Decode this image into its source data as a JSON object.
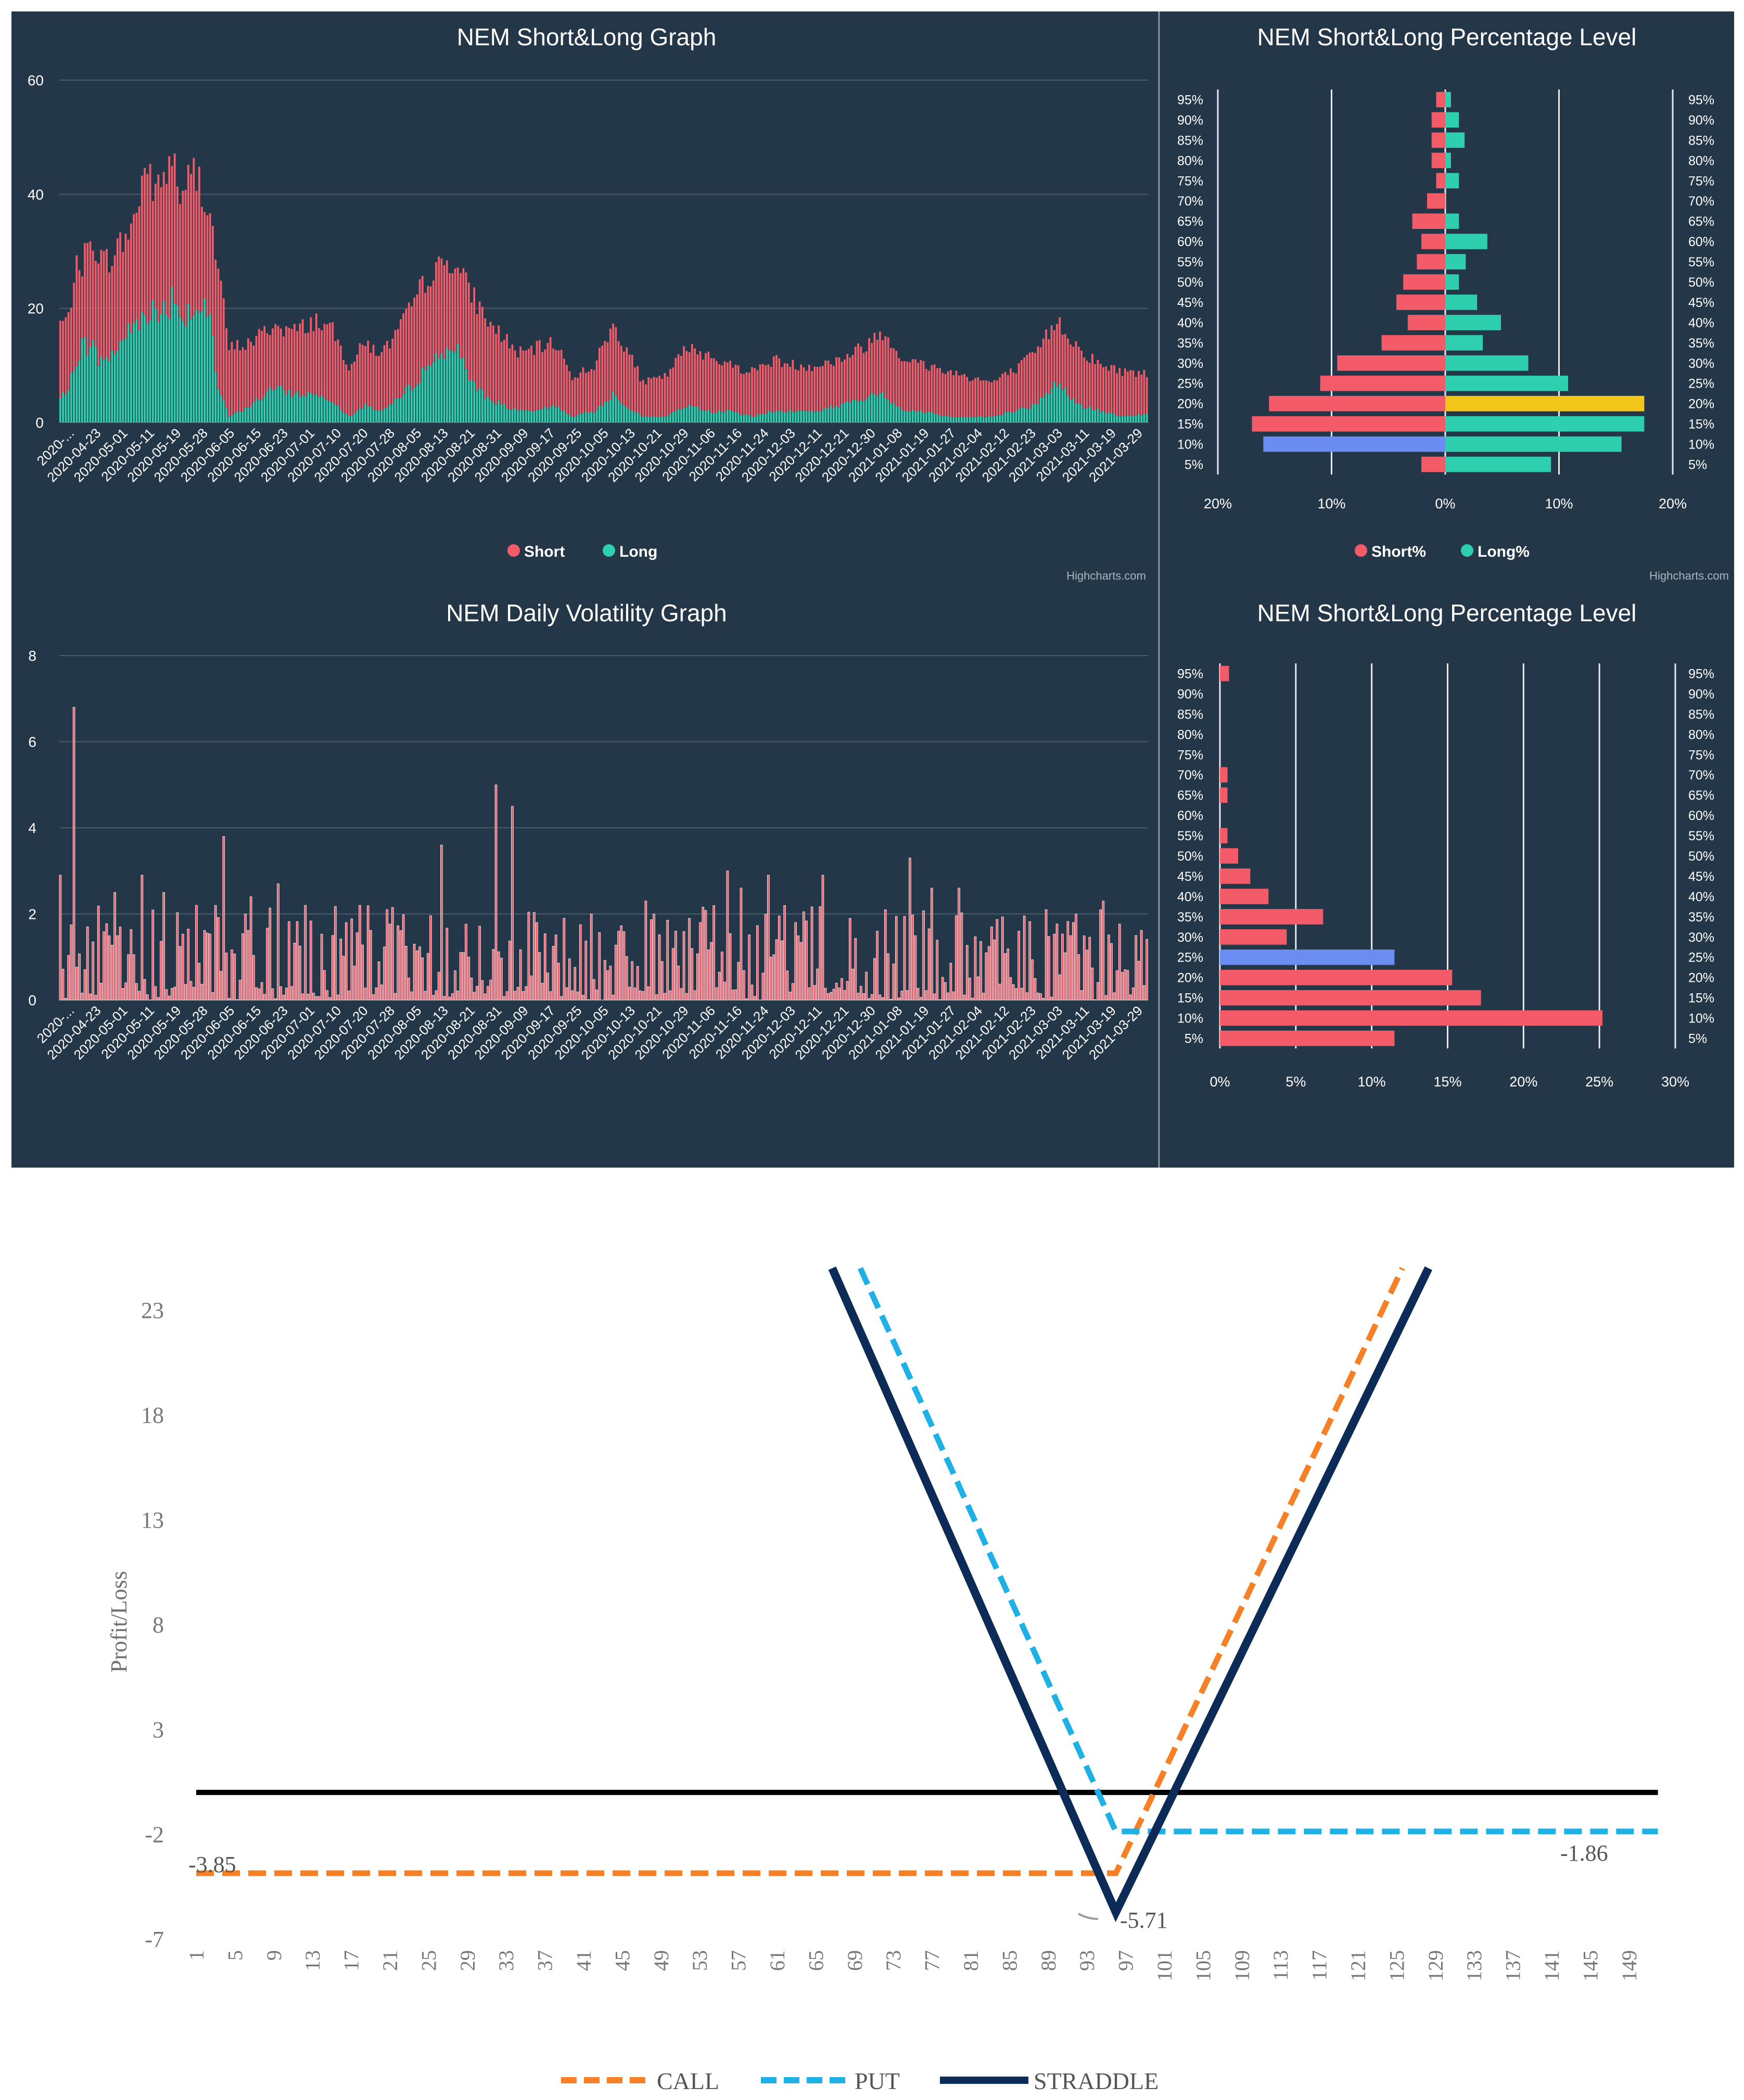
{
  "chart_data": [
    {
      "id": "nem-short-long",
      "type": "bar",
      "stacked": true,
      "title": "NEM Short&Long Graph",
      "credit": "Highcharts.com",
      "ylim": [
        0,
        60
      ],
      "yticks": [
        0,
        20,
        40,
        60
      ],
      "xtick_labels": [
        "2020-...",
        "2020-04-23",
        "2020-05-01",
        "2020-05-11",
        "2020-05-19",
        "2020-05-28",
        "2020-06-05",
        "2020-06-15",
        "2020-06-23",
        "2020-07-01",
        "2020-07-10",
        "2020-07-20",
        "2020-07-28",
        "2020-08-05",
        "2020-08-13",
        "2020-08-21",
        "2020-08-31",
        "2020-09-09",
        "2020-09-17",
        "2020-09-25",
        "2020-10-05",
        "2020-10-13",
        "2020-10-21",
        "2020-10-29",
        "2020-11-06",
        "2020-11-16",
        "2020-11-24",
        "2020-12-03",
        "2020-12-11",
        "2020-12-21",
        "2020-12-30",
        "2021-01-08",
        "2021-01-19",
        "2021-01-27",
        "2021-02-04",
        "2021-02-12",
        "2021-02-23",
        "2021-03-03",
        "2021-03-11",
        "2021-03-19",
        "2021-03-29"
      ],
      "total_profile": [
        [
          0,
          17.5
        ],
        [
          3,
          18
        ],
        [
          5,
          26
        ],
        [
          8,
          28
        ],
        [
          12,
          32
        ],
        [
          16,
          28
        ],
        [
          22,
          31
        ],
        [
          27,
          35
        ],
        [
          31,
          45
        ],
        [
          36,
          40
        ],
        [
          41,
          47
        ],
        [
          45,
          38
        ],
        [
          48,
          44
        ],
        [
          52,
          42
        ],
        [
          55,
          36
        ],
        [
          58,
          27
        ],
        [
          62,
          13
        ],
        [
          70,
          14
        ],
        [
          78,
          17
        ],
        [
          86,
          16
        ],
        [
          94,
          18
        ],
        [
          100,
          16
        ],
        [
          106,
          10
        ],
        [
          112,
          14
        ],
        [
          118,
          12
        ],
        [
          124,
          16
        ],
        [
          130,
          21
        ],
        [
          135,
          26
        ],
        [
          140,
          27
        ],
        [
          144,
          29
        ],
        [
          148,
          25
        ],
        [
          153,
          21
        ],
        [
          158,
          17
        ],
        [
          163,
          15
        ],
        [
          168,
          12
        ],
        [
          175,
          13
        ],
        [
          182,
          14
        ],
        [
          188,
          8
        ],
        [
          196,
          10
        ],
        [
          203,
          17
        ],
        [
          208,
          13
        ],
        [
          214,
          7
        ],
        [
          222,
          8
        ],
        [
          230,
          13
        ],
        [
          238,
          12
        ],
        [
          246,
          10
        ],
        [
          254,
          9
        ],
        [
          262,
          11
        ],
        [
          270,
          10
        ],
        [
          278,
          10
        ],
        [
          286,
          11
        ],
        [
          294,
          13
        ],
        [
          302,
          16
        ],
        [
          310,
          11
        ],
        [
          318,
          10
        ],
        [
          326,
          9
        ],
        [
          334,
          8
        ],
        [
          342,
          7
        ],
        [
          350,
          9
        ],
        [
          358,
          12
        ],
        [
          366,
          18
        ],
        [
          374,
          13
        ],
        [
          382,
          10
        ],
        [
          390,
          9
        ],
        [
          399,
          8.5
        ]
      ],
      "long_profile": [
        [
          0,
          4.5
        ],
        [
          3,
          5
        ],
        [
          5,
          10
        ],
        [
          8,
          14
        ],
        [
          12,
          13
        ],
        [
          16,
          10
        ],
        [
          22,
          14
        ],
        [
          27,
          17
        ],
        [
          31,
          20
        ],
        [
          36,
          19
        ],
        [
          41,
          22
        ],
        [
          45,
          19
        ],
        [
          48,
          20
        ],
        [
          52,
          20
        ],
        [
          55,
          17
        ],
        [
          58,
          6
        ],
        [
          62,
          1
        ],
        [
          70,
          3
        ],
        [
          78,
          6
        ],
        [
          86,
          5
        ],
        [
          94,
          5
        ],
        [
          100,
          4
        ],
        [
          106,
          1
        ],
        [
          112,
          3
        ],
        [
          118,
          2
        ],
        [
          124,
          4
        ],
        [
          130,
          7
        ],
        [
          135,
          10
        ],
        [
          140,
          12
        ],
        [
          144,
          14
        ],
        [
          148,
          10
        ],
        [
          153,
          6
        ],
        [
          158,
          4
        ],
        [
          163,
          3
        ],
        [
          168,
          2
        ],
        [
          175,
          2
        ],
        [
          182,
          3
        ],
        [
          188,
          1
        ],
        [
          196,
          2
        ],
        [
          203,
          5
        ],
        [
          208,
          3
        ],
        [
          214,
          1
        ],
        [
          222,
          1
        ],
        [
          230,
          3
        ],
        [
          238,
          2
        ],
        [
          246,
          2
        ],
        [
          254,
          1
        ],
        [
          262,
          2
        ],
        [
          270,
          2
        ],
        [
          278,
          2
        ],
        [
          286,
          3
        ],
        [
          294,
          4
        ],
        [
          302,
          5
        ],
        [
          310,
          2
        ],
        [
          318,
          2
        ],
        [
          326,
          1
        ],
        [
          334,
          1
        ],
        [
          342,
          1
        ],
        [
          350,
          2
        ],
        [
          358,
          3
        ],
        [
          366,
          7
        ],
        [
          374,
          3
        ],
        [
          382,
          2
        ],
        [
          390,
          1
        ],
        [
          399,
          1.5
        ]
      ],
      "legend": [
        {
          "name": "Short",
          "color": "#f45b69"
        },
        {
          "name": "Long",
          "color": "#2ecfae"
        }
      ]
    },
    {
      "id": "nem-pct-level-1",
      "type": "bar",
      "orientation": "horizontal",
      "title": "NEM Short&Long Percentage Level",
      "credit": "Highcharts.com",
      "categories": [
        "95%",
        "90%",
        "85%",
        "80%",
        "75%",
        "70%",
        "65%",
        "60%",
        "55%",
        "50%",
        "45%",
        "40%",
        "35%",
        "30%",
        "25%",
        "20%",
        "15%",
        "10%",
        "5%"
      ],
      "xtick_labels": [
        "20%",
        "10%",
        "0%",
        "10%",
        "20%"
      ],
      "xlim": [
        -20,
        20
      ],
      "series": [
        {
          "name": "Short%",
          "color": "#f45b69",
          "values": [
            0.8,
            1.2,
            1.2,
            1.2,
            0.8,
            1.6,
            2.9,
            2.1,
            2.5,
            3.7,
            4.3,
            3.3,
            5.6,
            9.5,
            11,
            15.5,
            17,
            16,
            2.1
          ]
        },
        {
          "name": "Long%",
          "color": "#2ecfae",
          "values": [
            0.5,
            1.2,
            1.7,
            0.5,
            1.2,
            0,
            1.2,
            3.7,
            1.8,
            1.2,
            2.8,
            4.9,
            3.3,
            7.3,
            10.8,
            17.5,
            17.5,
            15.5,
            9.3
          ]
        }
      ],
      "highlights": {
        "short": {
          "index": 17,
          "color": "#6b8cf0"
        },
        "long": {
          "index": 15,
          "color": "#f3c61b"
        }
      },
      "legend": [
        {
          "name": "Short%",
          "color": "#f45b69"
        },
        {
          "name": "Long%",
          "color": "#2ecfae"
        }
      ]
    },
    {
      "id": "nem-daily-volatility",
      "type": "bar",
      "title": "NEM Daily Volatility Graph",
      "ylim": [
        0,
        8
      ],
      "yticks": [
        0,
        2,
        4,
        6,
        8
      ],
      "xtick_labels": [
        "2020-...",
        "2020-04-23",
        "2020-05-01",
        "2020-05-11",
        "2020-05-19",
        "2020-05-28",
        "2020-06-05",
        "2020-06-15",
        "2020-06-23",
        "2020-07-01",
        "2020-07-10",
        "2020-07-20",
        "2020-07-28",
        "2020-08-05",
        "2020-08-13",
        "2020-08-21",
        "2020-08-31",
        "2020-09-09",
        "2020-09-17",
        "2020-09-25",
        "2020-10-05",
        "2020-10-13",
        "2020-10-21",
        "2020-10-29",
        "2020-11-06",
        "2020-11-16",
        "2020-11-24",
        "2020-12-03",
        "2020-12-11",
        "2020-12-21",
        "2020-12-30",
        "2021-01-08",
        "2021-01-19",
        "2021-01-27",
        "2021-02-04",
        "2021-02-12",
        "2021-02-23",
        "2021-03-03",
        "2021-03-11",
        "2021-03-19",
        "2021-03-29"
      ],
      "spikes": [
        [
          0,
          2.9
        ],
        [
          5,
          6.8
        ],
        [
          10,
          1.7
        ],
        [
          20,
          2.5
        ],
        [
          30,
          2.9
        ],
        [
          38,
          2.5
        ],
        [
          50,
          2.2
        ],
        [
          60,
          3.8
        ],
        [
          70,
          2.4
        ],
        [
          80,
          2.7
        ],
        [
          90,
          2.2
        ],
        [
          100,
          1.5
        ],
        [
          110,
          2.2
        ],
        [
          120,
          2.1
        ],
        [
          130,
          1.3
        ],
        [
          140,
          3.6
        ],
        [
          150,
          1.0
        ],
        [
          160,
          5.0
        ],
        [
          166,
          4.5
        ],
        [
          175,
          1.8
        ],
        [
          185,
          1.9
        ],
        [
          195,
          2.0
        ],
        [
          205,
          1.6
        ],
        [
          215,
          2.3
        ],
        [
          225,
          1.2
        ],
        [
          235,
          1.8
        ],
        [
          245,
          3.0
        ],
        [
          250,
          2.6
        ],
        [
          260,
          2.9
        ],
        [
          270,
          1.8
        ],
        [
          280,
          2.9
        ],
        [
          290,
          1.9
        ],
        [
          300,
          1.6
        ],
        [
          312,
          3.3
        ],
        [
          320,
          2.6
        ],
        [
          330,
          2.6
        ],
        [
          342,
          1.7
        ],
        [
          352,
          1.6
        ],
        [
          362,
          2.1
        ],
        [
          372,
          1.8
        ],
        [
          383,
          2.3
        ],
        [
          395,
          1.5
        ]
      ],
      "seed": 17
    },
    {
      "id": "nem-pct-level-2",
      "type": "bar",
      "orientation": "horizontal",
      "title": "NEM Short&Long Percentage Level",
      "categories": [
        "95%",
        "90%",
        "85%",
        "80%",
        "75%",
        "70%",
        "65%",
        "60%",
        "55%",
        "50%",
        "45%",
        "40%",
        "35%",
        "30%",
        "25%",
        "20%",
        "15%",
        "10%",
        "5%"
      ],
      "xtick_labels": [
        "0%",
        "5%",
        "10%",
        "15%",
        "20%",
        "25%",
        "30%"
      ],
      "xlim": [
        0,
        30
      ],
      "series": [
        {
          "name": "Short%",
          "color": "#f45b69",
          "values": [
            0.6,
            0,
            0,
            0,
            0,
            0.5,
            0.5,
            0,
            0.5,
            1.2,
            2.0,
            3.2,
            6.8,
            4.4,
            11.5,
            15.3,
            17.2,
            25.2,
            11.5
          ]
        }
      ],
      "highlights": {
        "short": {
          "index": 14,
          "color": "#6b8cf0"
        }
      }
    },
    {
      "id": "option-payoff",
      "type": "line",
      "ylabel": "Profit/Loss",
      "ylim": [
        -7,
        25
      ],
      "yticks": [
        23,
        18,
        13,
        8,
        3,
        -2,
        -7
      ],
      "xlim": [
        1,
        152
      ],
      "xticks": [
        1,
        5,
        9,
        13,
        17,
        21,
        25,
        29,
        33,
        37,
        41,
        45,
        49,
        53,
        57,
        61,
        65,
        69,
        73,
        77,
        81,
        85,
        89,
        93,
        97,
        101,
        105,
        109,
        113,
        117,
        121,
        125,
        129,
        133,
        137,
        141,
        145,
        149
      ],
      "series": [
        {
          "name": "CALL",
          "color": "#f58025",
          "dashed": true,
          "x": [
            1,
            96,
            125.6
          ],
          "y": [
            -3.85,
            -3.85,
            25
          ]
        },
        {
          "name": "PUT",
          "color": "#1fb1e6",
          "dashed": true,
          "x": [
            69.6,
            96,
            152
          ],
          "y": [
            25,
            -1.86,
            -1.86
          ]
        },
        {
          "name": "STRADDLE",
          "color": "#0d2b57",
          "dashed": false,
          "x": [
            66.7,
            96,
            128.3
          ],
          "y": [
            25,
            -5.71,
            25
          ]
        },
        {
          "name": "",
          "color": "#000000",
          "dashed": false,
          "x": [
            1,
            152
          ],
          "y": [
            0,
            0
          ]
        }
      ],
      "annotations": [
        "-3.85",
        "-5.71",
        "-1.86"
      ],
      "legend": [
        "CALL",
        "PUT",
        "STRADDLE"
      ]
    }
  ]
}
